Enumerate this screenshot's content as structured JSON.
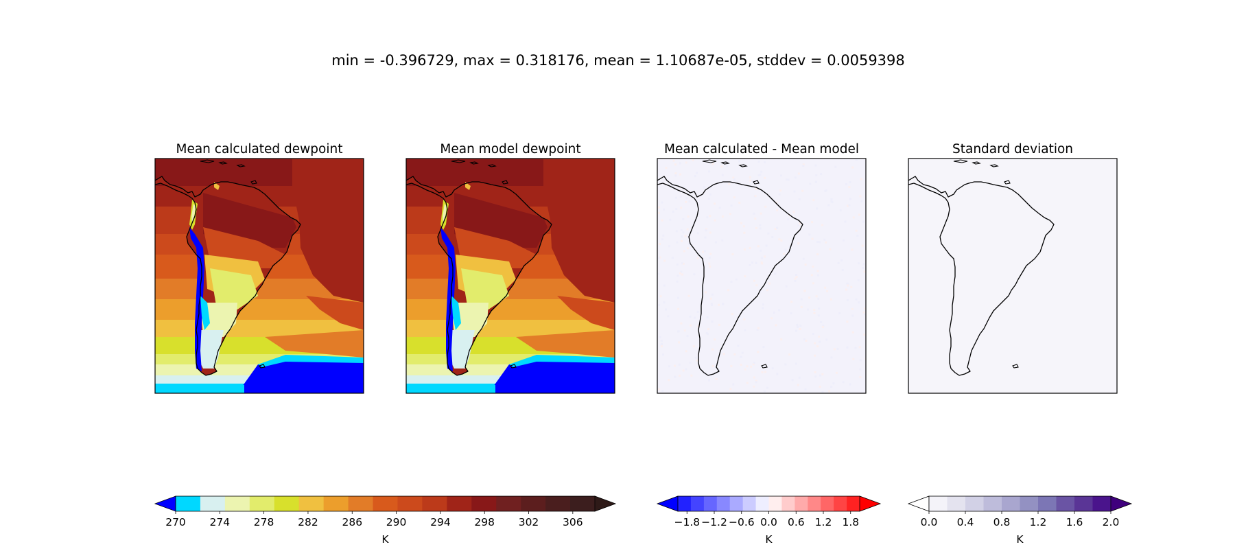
{
  "figure": {
    "suptitle": "min = -0.396729, max = 0.318176, mean = 1.10687e-05, stddev = 0.0059398"
  },
  "colors": {
    "dewpoint_levels": [
      "#0000ff",
      "#00d8ff",
      "#d8f0f0",
      "#ecf4b0",
      "#e2ec6c",
      "#d8e02c",
      "#f0c040",
      "#ec9e2c",
      "#e27c28",
      "#d85a1c",
      "#cc4a1c",
      "#bc3a1a",
      "#a02418",
      "#881818",
      "#702020",
      "#5c1e1e",
      "#4a1e1e",
      "#3c1e1e",
      "#2e1a18"
    ],
    "diff_levels": [
      "#0000ff",
      "#2222ff",
      "#4444ff",
      "#6666ff",
      "#8888ff",
      "#aaaaff",
      "#ccccff",
      "#eeeeff",
      "#ffeeee",
      "#ffcccc",
      "#ffaaaa",
      "#ff8888",
      "#ff6666",
      "#ff4444",
      "#ff2222",
      "#ff0000"
    ],
    "std_levels": [
      "#ffffff",
      "#f4f3f9",
      "#e4e3ef",
      "#d2d1e6",
      "#bebcdb",
      "#a9a6cf",
      "#9391c2",
      "#7c76b5",
      "#6a54a4",
      "#5a3596",
      "#4a148c",
      "#3f007d"
    ],
    "coastline": "#000000",
    "diff_field": "#f3f2fb",
    "std_field": "#f6f5fa"
  },
  "chart_data": [
    {
      "type": "heatmap",
      "title": "Mean calculated dewpoint",
      "colormap": "dewpoint_levels",
      "field": "dewpoint"
    },
    {
      "type": "heatmap",
      "title": "Mean model dewpoint",
      "colormap": "dewpoint_levels",
      "field": "dewpoint"
    },
    {
      "type": "heatmap",
      "title": "Mean calculated - Mean model",
      "colormap": "diff_levels",
      "field": "near-zero difference"
    },
    {
      "type": "heatmap",
      "title": "Standard deviation",
      "colormap": "std_levels",
      "field": "near-zero standard deviation"
    }
  ],
  "colorbars": [
    {
      "label": "K",
      "colormap": "dewpoint_levels",
      "range": [
        270,
        308
      ],
      "tick_values": [
        270,
        274,
        278,
        282,
        286,
        290,
        294,
        298,
        302,
        306
      ],
      "tick_labels": [
        "270",
        "274",
        "278",
        "282",
        "286",
        "290",
        "294",
        "298",
        "302",
        "306"
      ],
      "extend": "both"
    },
    {
      "label": "K",
      "colormap": "diff_levels",
      "range": [
        -2.0,
        2.0
      ],
      "tick_values": [
        -1.8,
        -1.2,
        -0.6,
        0.0,
        0.6,
        1.2,
        1.8
      ],
      "tick_labels": [
        "−1.8",
        "−1.2",
        "−0.6",
        "0.0",
        "0.6",
        "1.2",
        "1.8"
      ],
      "extend": "both"
    },
    {
      "label": "K",
      "colormap": "std_levels",
      "range": [
        0.0,
        2.0
      ],
      "tick_values": [
        0.0,
        0.4,
        0.8,
        1.2,
        1.6,
        2.0
      ],
      "tick_labels": [
        "0.0",
        "0.4",
        "0.8",
        "1.2",
        "1.6",
        "2.0"
      ],
      "extend": "both"
    }
  ]
}
